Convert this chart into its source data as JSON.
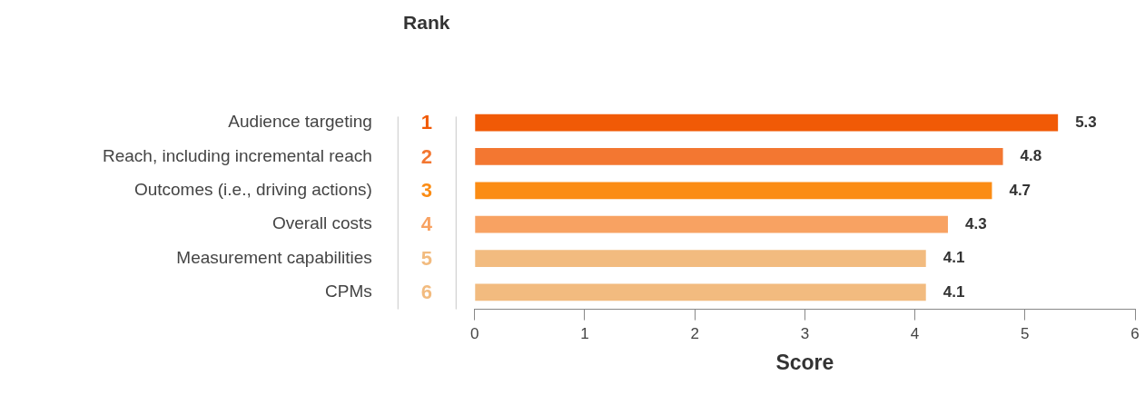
{
  "chart_data": {
    "type": "bar",
    "orientation": "horizontal",
    "xlabel": "Score",
    "categories": [
      "Audience targeting",
      "Reach, including incremental reach",
      "Outcomes (i.e., driving actions)",
      "Overall costs",
      "Measurement capabilities",
      "CPMs"
    ],
    "values": [
      5.3,
      4.8,
      4.7,
      4.3,
      4.1,
      4.1
    ],
    "colors": [
      "#f15a06",
      "#f37731",
      "#fb8c14",
      "#f8a262",
      "#f2bb7f",
      "#f2bb7f"
    ],
    "xlim": [
      0,
      6
    ],
    "xticks": [
      0,
      1,
      2,
      3,
      4,
      5,
      6
    ],
    "grid": false,
    "legend": false,
    "data_labels": true,
    "annotations": [
      "Rank",
      "1",
      "2",
      "3",
      "4",
      "5",
      "6"
    ]
  }
}
